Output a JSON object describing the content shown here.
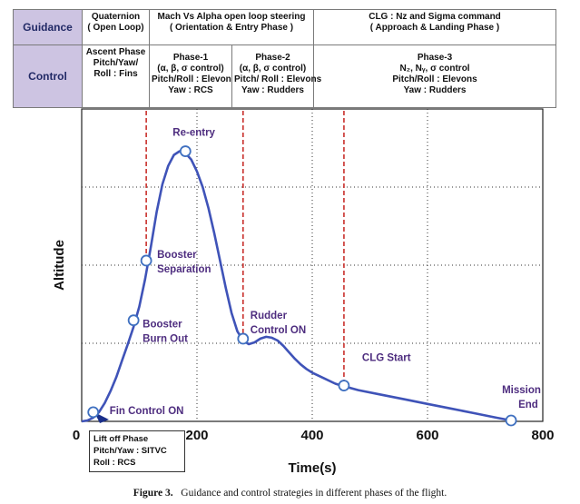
{
  "header": {
    "guidance_label": "Guidance",
    "control_label": "Control",
    "guidance_cells": [
      [
        "Quaternion",
        "( Open Loop)"
      ],
      [
        "Mach Vs Alpha open loop steering",
        "( Orientation & Entry Phase )"
      ],
      [
        "CLG : Nz and Sigma command",
        "( Approach & Landing Phase )"
      ]
    ],
    "control_cells": [
      [
        "Ascent Phase",
        "Pitch/Yaw/",
        "Roll :  Fins"
      ],
      [
        "Phase-1",
        "(α, β, σ control)",
        "Pitch/Roll : Elevon",
        "Yaw : RCS"
      ],
      [
        "Phase-2",
        "(α, β, σ control)",
        "Pitch/ Roll : Elevons",
        "Yaw : Rudders"
      ],
      [
        "Phase-3",
        "N₂, Nᵧ, σ control",
        "Pitch/Roll : Elevons",
        "Yaw : Rudders"
      ]
    ]
  },
  "chart_data": {
    "type": "line",
    "xlabel": "Time(s)",
    "ylabel": "Altitude",
    "xlim": [
      0,
      800
    ],
    "xticks": [
      "0",
      "200",
      "400",
      "600",
      "800"
    ],
    "grid": "dotted",
    "series": [
      {
        "x": [
          0,
          10,
          20,
          30,
          40,
          50,
          60,
          70,
          80,
          90,
          100,
          110,
          120,
          130,
          140,
          150,
          160,
          170,
          180,
          190,
          200,
          210,
          220,
          230,
          240,
          250,
          260,
          270,
          280,
          290,
          300,
          310,
          320,
          330,
          340,
          350,
          360,
          370,
          380,
          390,
          400,
          420,
          440,
          450,
          480,
          520,
          560,
          600,
          640,
          680,
          720,
          745
        ],
        "y": [
          0,
          1,
          4,
          10,
          20,
          33,
          48,
          66,
          84,
          103,
          125,
          155,
          190,
          228,
          258,
          278,
          290,
          294,
          292,
          285,
          272,
          255,
          232,
          205,
          175,
          145,
          118,
          98,
          88,
          84,
          86,
          90,
          92,
          91,
          88,
          82,
          75,
          68,
          62,
          57,
          53,
          47,
          41,
          39,
          34,
          29,
          24,
          19,
          14,
          9,
          4,
          1
        ]
      }
    ],
    "markers": [
      {
        "label": "Fin Control ON",
        "x": 20,
        "y": 10
      },
      {
        "label": "Booster Burn Out",
        "x": 90,
        "y": 110
      },
      {
        "label": "Booster Separation",
        "x": 112,
        "y": 175
      },
      {
        "label": "Re-entry",
        "x": 180,
        "y": 294
      },
      {
        "label": "Rudder Control ON",
        "x": 280,
        "y": 90
      },
      {
        "label": "CLG Start",
        "x": 455,
        "y": 39
      },
      {
        "label": "Mission End",
        "x": 745,
        "y": 1
      }
    ],
    "phase_lines_x": [
      112,
      280,
      455
    ]
  },
  "liftoff_box": [
    "Lift off Phase",
    "Pitch/Yaw : SITVC",
    "Roll :  RCS"
  ],
  "caption": {
    "figure": "Figure 3.",
    "text": "Guidance and control strategies in different phases of the flight."
  },
  "colors": {
    "curve": "#3f53b8",
    "marker_fill": "#ffffff",
    "marker_stroke": "#3f70c0",
    "phase_line": "#c9302c",
    "label": "#4e2d7f",
    "header_label_bg": "#cdc4e2"
  }
}
